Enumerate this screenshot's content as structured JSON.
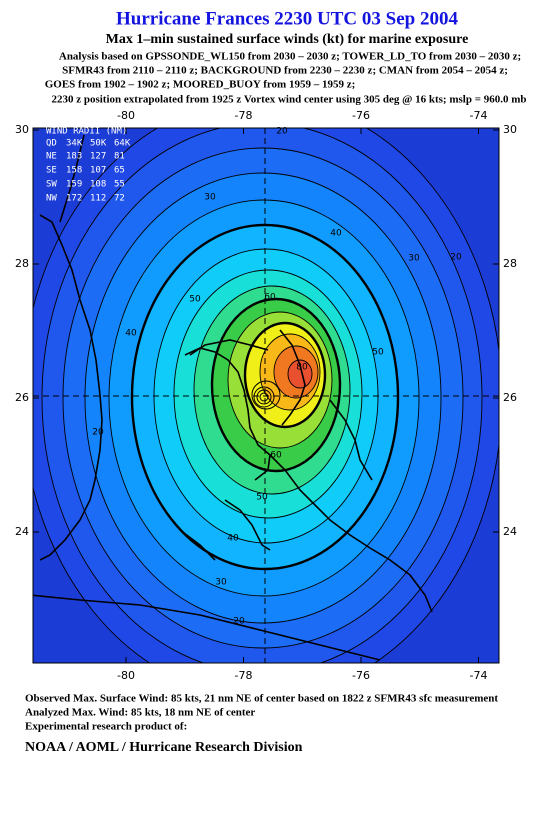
{
  "header": {
    "title": "Hurricane Frances 2230 UTC 03 Sep 2004",
    "subtitle": "Max 1–min sustained surface winds (kt) for marine exposure",
    "notes": [
      "Analysis based on  GPSSONDE_WL150 from 2030 – 2030 z;  TOWER_LD_TO from 2030 – 2030 z;",
      "SFMR43 from 2110 – 2110 z;  BACKGROUND from 2230 – 2230 z;  CMAN from 2054 – 2054 z;",
      "GOES from 1902 – 1902 z;  MOORED_BUOY from 1959 – 1959 z;",
      "2230 z position extrapolated from 1925 z Vortex wind center using 305 deg @ 16 kts; mslp = 960.0 mb"
    ]
  },
  "map": {
    "lon_ticks": [
      -80,
      -78,
      -76,
      -74
    ],
    "lat_ticks": [
      30,
      28,
      26,
      24
    ],
    "wind_radii": {
      "title": "WIND RADII (NM)",
      "columns": [
        "QD",
        "34K",
        "50K",
        "64K"
      ],
      "rows": [
        [
          "NE",
          183,
          127,
          81
        ],
        [
          "SE",
          158,
          107,
          65
        ],
        [
          "SW",
          159,
          108,
          55
        ],
        [
          "NW",
          172,
          112,
          72
        ]
      ]
    },
    "contour_labels": [
      20,
      30,
      40,
      30,
      20,
      40,
      50,
      60,
      50,
      80,
      20,
      60,
      50,
      40,
      30,
      20
    ]
  },
  "footer": {
    "lines": [
      "Observed Max. Surface Wind: 85 kts, 21 nm NE of center based on 1822 z SFMR43 sfc measurement",
      "Analyzed Max. Wind: 85 kts, 18 nm NE of center",
      "Experimental research product of:"
    ],
    "credit": "NOAA / AOML / Hurricane Research Division"
  }
}
